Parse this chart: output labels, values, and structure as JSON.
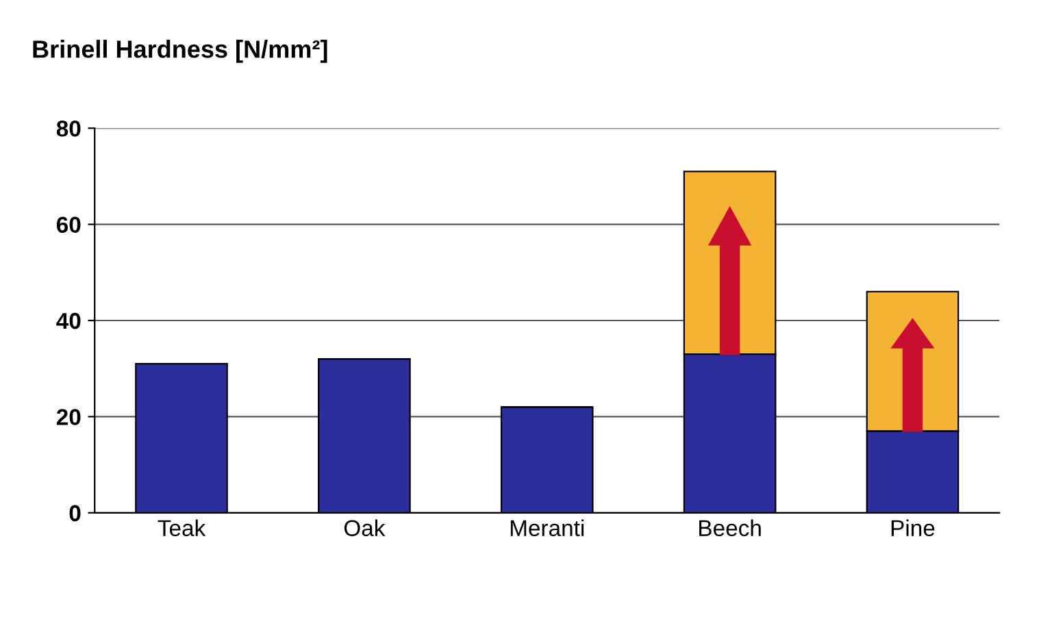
{
  "chart_data": {
    "type": "bar",
    "title": "Brinell Hardness [N/mm²]",
    "categories": [
      "Teak",
      "Oak",
      "Meranti",
      "Beech",
      "Pine"
    ],
    "stacked": true,
    "series": [
      {
        "color": "#2e2e9a",
        "values": [
          31,
          32,
          22,
          33,
          17
        ]
      },
      {
        "color": "#f5b335",
        "values": [
          null,
          null,
          null,
          38,
          29
        ]
      }
    ],
    "ylim": [
      0,
      80
    ],
    "yticks": [
      0,
      20,
      40,
      60,
      80
    ],
    "grid": "y"
  }
}
